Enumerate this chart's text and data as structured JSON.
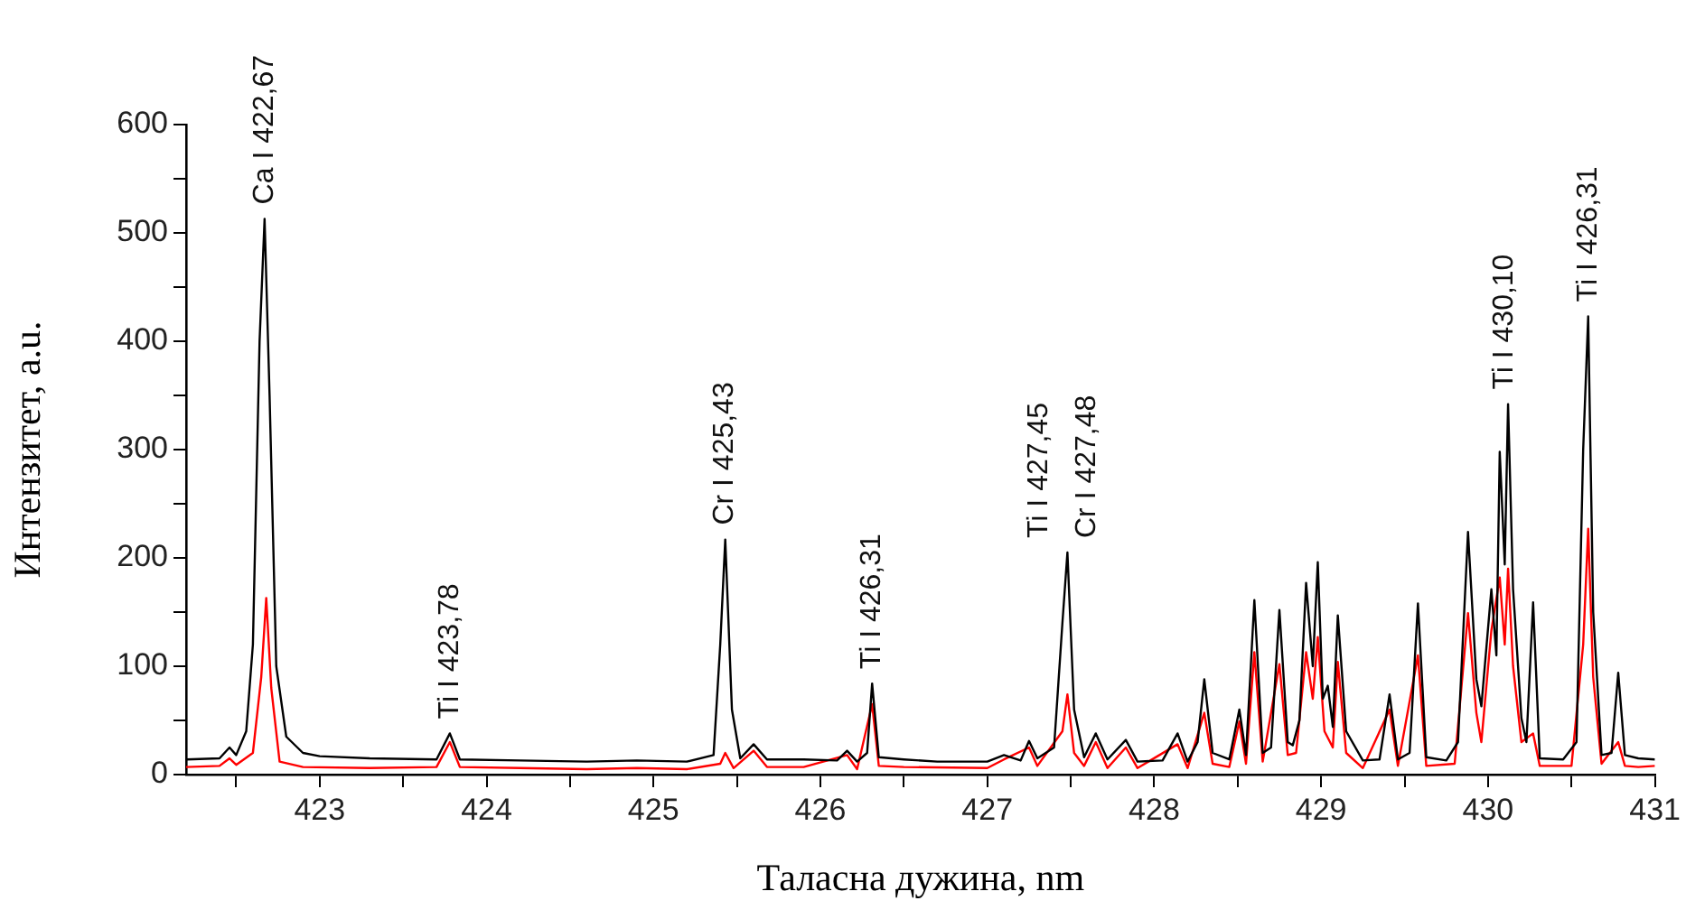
{
  "chart_data": {
    "type": "line",
    "xlabel": "Таласна дужина, nm",
    "ylabel": "Интензитет, a.u.",
    "xlim": [
      422.2,
      431
    ],
    "xticks": [
      {
        "value": 422.5,
        "label": null
      },
      423,
      {
        "value": 423.5,
        "label": null
      },
      424,
      {
        "value": 424.5,
        "label": null
      },
      425,
      {
        "value": 425.5,
        "label": null
      },
      426,
      {
        "value": 426.5,
        "label": null
      },
      427,
      {
        "value": 427.5,
        "label": null
      },
      428,
      {
        "value": 428.5,
        "label": null
      },
      429,
      {
        "value": 429.5,
        "label": null
      },
      430,
      {
        "value": 430.5,
        "label": null
      },
      431
    ],
    "ylim": [
      0,
      600
    ],
    "yticks": [
      0,
      {
        "value": 50,
        "label": null
      },
      100,
      {
        "value": 150,
        "label": null
      },
      200,
      {
        "value": 250,
        "label": null
      },
      300,
      {
        "value": 350,
        "label": null
      },
      400,
      {
        "value": 450,
        "label": null
      },
      500,
      {
        "value": 550,
        "label": null
      },
      600
    ],
    "grid": false,
    "legend": false,
    "marker": "none",
    "line_style": "solid",
    "series": [
      {
        "color": "#000000",
        "x": [
          422.2,
          422.4,
          422.46,
          422.5,
          422.56,
          422.6,
          422.64,
          422.67,
          422.7,
          422.74,
          422.8,
          422.9,
          423.0,
          423.3,
          423.7,
          423.78,
          423.84,
          424.2,
          424.6,
          424.9,
          425.2,
          425.36,
          425.4,
          425.43,
          425.47,
          425.52,
          425.6,
          425.68,
          425.9,
          426.1,
          426.16,
          426.22,
          426.28,
          426.31,
          426.35,
          426.5,
          426.7,
          427.0,
          427.1,
          427.2,
          427.25,
          427.3,
          427.4,
          427.45,
          427.48,
          427.52,
          427.58,
          427.65,
          427.72,
          427.83,
          427.9,
          428.05,
          428.14,
          428.2,
          428.26,
          428.3,
          428.35,
          428.45,
          428.51,
          428.55,
          428.6,
          428.65,
          428.7,
          428.75,
          428.8,
          428.83,
          428.87,
          428.91,
          428.95,
          428.98,
          429.01,
          429.04,
          429.07,
          429.1,
          429.15,
          429.25,
          429.35,
          429.41,
          429.46,
          429.53,
          429.58,
          429.63,
          429.75,
          429.82,
          429.88,
          429.93,
          429.96,
          430.02,
          430.05,
          430.07,
          430.1,
          430.12,
          430.15,
          430.2,
          430.23,
          430.27,
          430.31,
          430.45,
          430.53,
          430.57,
          430.6,
          430.63,
          430.68,
          430.74,
          430.78,
          430.82,
          430.9,
          431.0
        ],
        "values": [
          14,
          15,
          25,
          18,
          40,
          120,
          400,
          513,
          350,
          100,
          35,
          20,
          17,
          15,
          14,
          38,
          14,
          13,
          12,
          13,
          12,
          18,
          120,
          217,
          60,
          15,
          28,
          14,
          14,
          13,
          22,
          12,
          20,
          84,
          16,
          14,
          12,
          12,
          18,
          13,
          31,
          15,
          25,
          140,
          205,
          60,
          16,
          38,
          14,
          32,
          12,
          13,
          38,
          12,
          30,
          88,
          20,
          14,
          60,
          18,
          161,
          20,
          25,
          152,
          30,
          27,
          50,
          177,
          100,
          196,
          70,
          82,
          44,
          147,
          40,
          13,
          14,
          74,
          14,
          20,
          158,
          16,
          13,
          30,
          224,
          88,
          63,
          171,
          110,
          298,
          194,
          342,
          171,
          52,
          30,
          159,
          15,
          14,
          30,
          300,
          423,
          150,
          18,
          20,
          94,
          18,
          15,
          14
        ]
      },
      {
        "color": "#ff0000",
        "x": [
          422.2,
          422.4,
          422.46,
          422.5,
          422.6,
          422.65,
          422.68,
          422.71,
          422.76,
          422.9,
          423.3,
          423.7,
          423.78,
          423.84,
          424.2,
          424.6,
          424.9,
          425.2,
          425.4,
          425.43,
          425.48,
          425.6,
          425.68,
          425.9,
          426.16,
          426.22,
          426.31,
          426.35,
          426.5,
          427.0,
          427.1,
          427.25,
          427.3,
          427.45,
          427.48,
          427.52,
          427.58,
          427.65,
          427.72,
          427.83,
          427.9,
          428.14,
          428.2,
          428.3,
          428.35,
          428.45,
          428.51,
          428.55,
          428.6,
          428.65,
          428.75,
          428.8,
          428.85,
          428.91,
          428.95,
          428.98,
          429.02,
          429.07,
          429.1,
          429.15,
          429.25,
          429.41,
          429.46,
          429.58,
          429.63,
          429.8,
          429.88,
          429.93,
          429.96,
          430.02,
          430.07,
          430.1,
          430.12,
          430.15,
          430.2,
          430.27,
          430.31,
          430.5,
          430.57,
          430.6,
          430.63,
          430.68,
          430.78,
          430.82,
          430.9,
          431.0
        ],
        "values": [
          7,
          8,
          15,
          9,
          20,
          90,
          163,
          80,
          12,
          7,
          6,
          7,
          30,
          7,
          6,
          5,
          6,
          5,
          10,
          20,
          6,
          22,
          7,
          7,
          18,
          5,
          65,
          8,
          7,
          6,
          14,
          25,
          8,
          40,
          74,
          20,
          8,
          30,
          6,
          25,
          6,
          28,
          6,
          57,
          10,
          7,
          49,
          10,
          113,
          12,
          102,
          18,
          20,
          113,
          70,
          127,
          40,
          25,
          104,
          20,
          6,
          60,
          8,
          110,
          8,
          10,
          149,
          57,
          30,
          133,
          182,
          120,
          190,
          100,
          30,
          38,
          8,
          8,
          120,
          227,
          90,
          10,
          30,
          8,
          7,
          8
        ]
      }
    ],
    "annotations": [
      {
        "text": "Ca I 422,67",
        "x": 422.67,
        "y": 513
      },
      {
        "text": "Ti I 423,78",
        "x": 423.78,
        "y": 38
      },
      {
        "text": "Cr I 425,43",
        "x": 425.43,
        "y": 217
      },
      {
        "text": "Ti I 426,31",
        "x": 426.31,
        "y": 84
      },
      {
        "text": "Ti I 427,45",
        "x": 427.45,
        "y": 205
      },
      {
        "text": "Cr I 427,48",
        "x": 427.48,
        "y": 205
      },
      {
        "text": "Ti I 430,10",
        "x": 430.1,
        "y": 342
      },
      {
        "text": "Ti I 426,31",
        "x": 430.6,
        "y": 423
      }
    ]
  }
}
